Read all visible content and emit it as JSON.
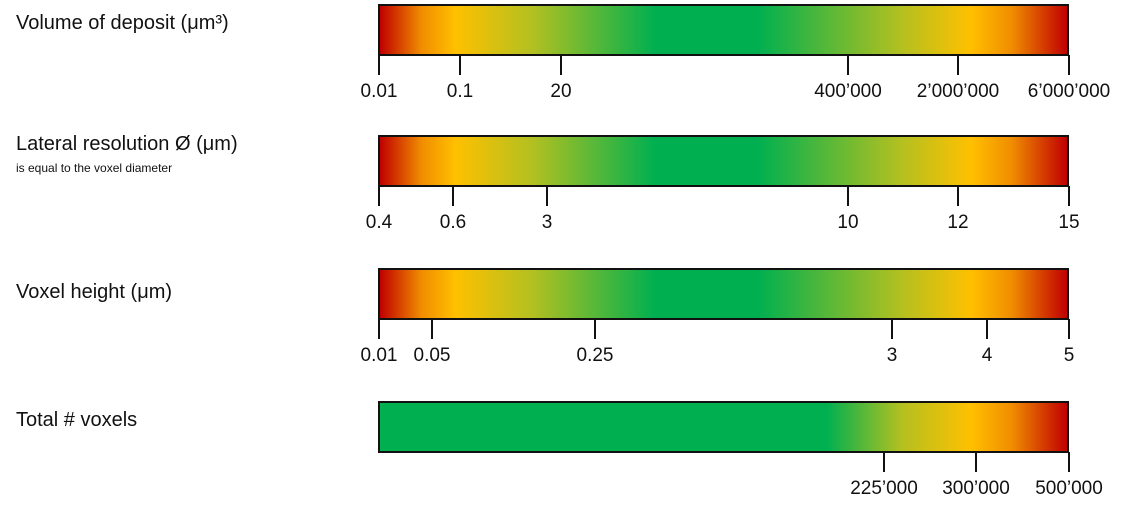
{
  "rows": [
    {
      "label": "Volume of deposit (μm³)",
      "sublabel": "",
      "gradient": "full",
      "ticks": [
        {
          "label": "0.01"
        },
        {
          "label": "0.1"
        },
        {
          "label": "20"
        },
        {
          "label": "400’000"
        },
        {
          "label": "2’000’000"
        },
        {
          "label": "6’000’000"
        }
      ]
    },
    {
      "label": "Lateral resolution Ø (μm)",
      "sublabel": "is equal to the voxel diameter",
      "gradient": "full",
      "ticks": [
        {
          "label": "0.4"
        },
        {
          "label": "0.6"
        },
        {
          "label": "3"
        },
        {
          "label": "10"
        },
        {
          "label": "12"
        },
        {
          "label": "15"
        }
      ]
    },
    {
      "label": "Voxel height (μm)",
      "sublabel": "",
      "gradient": "full",
      "ticks": [
        {
          "label": "0.01"
        },
        {
          "label": "0.05"
        },
        {
          "label": "0.25"
        },
        {
          "label": "3"
        },
        {
          "label": "4"
        },
        {
          "label": "5"
        }
      ]
    },
    {
      "label": "Total # voxels",
      "sublabel": "",
      "gradient": "right",
      "ticks": [
        {
          "label": "225’000"
        },
        {
          "label": "300’000"
        },
        {
          "label": "500’000"
        }
      ]
    }
  ],
  "colors": {
    "red": "#c00000",
    "orange": "#f08c00",
    "yellow": "#ffc000",
    "green": "#00b050"
  }
}
